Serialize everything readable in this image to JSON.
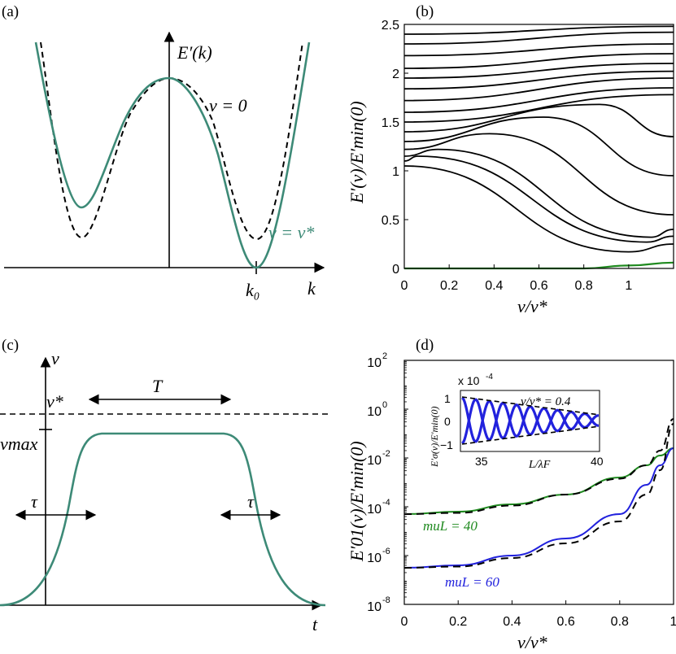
{
  "panels": {
    "a": {
      "panel_label": "(a)",
      "ylabel": "E′(k)",
      "xlabel": "k",
      "k0_label": "k₀",
      "curve_label_v0": "v = 0",
      "curve_label_vstar": "v = v*",
      "colors": {
        "vstar": "#3d8a77",
        "v0": "#000000"
      }
    },
    "b": {
      "panel_label": "(b)",
      "ylabel": "E′(v)/E′min(0)",
      "xlabel": "v/v*",
      "xticks": [
        "0",
        "0.2",
        "0.4",
        "0.6",
        "0.8",
        "1"
      ],
      "yticks": [
        "0",
        "0.5",
        "1",
        "1.5",
        "2",
        "2.5"
      ],
      "colors": {
        "bands": "#000000",
        "ground": "#1f8a1f"
      }
    },
    "c": {
      "panel_label": "(c)",
      "ylabel": "v",
      "xlabel": "t",
      "vstar_label": "v*",
      "vmax_label": "vmax",
      "T_label": "T",
      "tau_label_left": "τ",
      "tau_label_right": "τ",
      "colors": {
        "pulse": "#3d8a77"
      }
    },
    "d": {
      "panel_label": "(d)",
      "ylabel": "E′01(v)/E′min(0)",
      "xlabel": "v/v*",
      "xticks": [
        "0",
        "0.2",
        "0.4",
        "0.6",
        "0.8",
        "1"
      ],
      "yticks": [
        "10",
        "10",
        "10",
        "10",
        "10",
        "10"
      ],
      "ytick_exponents": [
        "-8",
        "-6",
        "-4",
        "-2",
        "0",
        "2"
      ],
      "series_label_40": "muL = 40",
      "series_label_60": "muL = 60",
      "colors": {
        "mu40": "#1f8a1f",
        "mu60": "#2222dd",
        "approx": "#000000"
      },
      "inset": {
        "scale_label": "x 10",
        "scale_exponent": "-4",
        "annotation": "v/v* = 0.4",
        "ylabel": "E′σ(v)/E′min(0)",
        "xlabel": "L/λF",
        "xticks": [
          "35",
          "40"
        ],
        "yticks": [
          "1",
          "0",
          "−1"
        ]
      }
    }
  },
  "chart_data": [
    {
      "type": "line",
      "panel": "a",
      "xlabel": "k",
      "ylabel": "E′(k)",
      "series": [
        {
          "name": "v = 0",
          "style": "dashed",
          "x": [
            -2.5,
            -2.2,
            -1.9,
            -1.6,
            -1.3,
            -1.0,
            -0.7,
            -0.4,
            0,
            0.4,
            0.7,
            1.0,
            1.3,
            1.6,
            1.9,
            2.2,
            2.5
          ],
          "y": [
            3.1,
            1.6,
            0.6,
            0.2,
            0.55,
            1.25,
            1.85,
            2.25,
            2.4,
            2.25,
            1.85,
            1.25,
            0.55,
            0.2,
            0.6,
            1.6,
            3.1
          ]
        },
        {
          "name": "v = v*",
          "style": "solid",
          "x": [
            -2.6,
            -2.3,
            -2.0,
            -1.7,
            -1.4,
            -1.1,
            -0.8,
            -0.4,
            0,
            0.4,
            0.8,
            1.1,
            1.4,
            1.7,
            2.0,
            2.3,
            2.6
          ],
          "y": [
            3.1,
            1.7,
            0.9,
            0.55,
            0.85,
            1.45,
            1.95,
            2.3,
            2.4,
            2.2,
            1.6,
            0.9,
            0.2,
            0.15,
            0.7,
            1.8,
            3.2
          ]
        }
      ]
    },
    {
      "type": "line",
      "panel": "b",
      "xlabel": "v/v*",
      "ylabel": "E′(v)/E′min(0)",
      "xlim": [
        0,
        1.2
      ],
      "ylim": [
        0,
        2.5
      ],
      "bands": [
        [
          [
            0,
            1.05
          ],
          [
            1.0,
            0.17
          ],
          [
            1.2,
            0.25
          ]
        ],
        [
          [
            0,
            1.1
          ],
          [
            0.06,
            1.15
          ],
          [
            1.08,
            0.27
          ],
          [
            1.2,
            0.33
          ]
        ],
        [
          [
            0,
            1.15
          ],
          [
            0.15,
            1.22
          ],
          [
            1.1,
            0.32
          ],
          [
            1.2,
            0.4
          ]
        ],
        [
          [
            0,
            1.22
          ],
          [
            0.38,
            1.38
          ],
          [
            1.2,
            0.55
          ]
        ],
        [
          [
            0,
            1.3
          ],
          [
            0.62,
            1.55
          ],
          [
            1.2,
            0.95
          ]
        ],
        [
          [
            0,
            1.4
          ],
          [
            0.87,
            1.68
          ],
          [
            1.2,
            1.35
          ]
        ],
        [
          [
            0,
            1.5
          ],
          [
            1.2,
            1.78
          ]
        ],
        [
          [
            0,
            1.6
          ],
          [
            1.2,
            1.85
          ]
        ],
        [
          [
            0,
            1.72
          ],
          [
            1.2,
            1.95
          ]
        ],
        [
          [
            0,
            1.84
          ],
          [
            1.2,
            2.02
          ]
        ],
        [
          [
            0,
            1.95
          ],
          [
            1.2,
            2.1
          ]
        ],
        [
          [
            0,
            2.05
          ],
          [
            1.2,
            2.2
          ]
        ],
        [
          [
            0,
            2.18
          ],
          [
            1.2,
            2.3
          ]
        ],
        [
          [
            0,
            2.3
          ],
          [
            1.2,
            2.42
          ]
        ],
        [
          [
            0,
            2.4
          ],
          [
            1.2,
            2.48
          ]
        ]
      ],
      "ground": [
        [
          0,
          0
        ],
        [
          0.8,
          0
        ],
        [
          1.0,
          0.03
        ],
        [
          1.2,
          0.06
        ]
      ]
    },
    {
      "type": "line",
      "panel": "c",
      "xlabel": "t",
      "ylabel": "v",
      "series": [
        {
          "name": "v(t)",
          "x": [
            0,
            0.05,
            0.1,
            0.15,
            0.2,
            0.25,
            0.3,
            0.7,
            0.75,
            0.8,
            0.85,
            0.9,
            0.95,
            1.0
          ],
          "y": [
            0,
            0.05,
            0.35,
            0.8,
            0.98,
            1.0,
            1.0,
            1.0,
            0.98,
            0.8,
            0.35,
            0.05,
            0.01,
            0
          ]
        }
      ]
    },
    {
      "type": "line",
      "panel": "d",
      "xlabel": "v/v*",
      "ylabel": "E′01(v)/E′min(0)",
      "xlim": [
        0,
        1
      ],
      "ylim_log10": [
        -8,
        2
      ],
      "series": [
        {
          "name": "muL = 40",
          "x": [
            0,
            0.2,
            0.4,
            0.6,
            0.8,
            0.9,
            0.95,
            1.0
          ],
          "log10_y": [
            -4.3,
            -4.2,
            -3.9,
            -3.5,
            -2.8,
            -2.3,
            -1.9,
            -1.6
          ]
        },
        {
          "name": "muL = 60",
          "x": [
            0,
            0.2,
            0.4,
            0.6,
            0.8,
            0.9,
            0.95,
            1.0
          ],
          "log10_y": [
            -6.5,
            -6.4,
            -6.0,
            -5.3,
            -4.3,
            -3.1,
            -2.3,
            -1.6
          ]
        }
      ],
      "approx": [
        {
          "x": [
            0,
            0.2,
            0.4,
            0.6,
            0.8,
            0.9,
            0.95,
            1.0
          ],
          "log10_y": [
            -4.3,
            -4.25,
            -3.95,
            -3.5,
            -2.85,
            -2.3,
            -1.7,
            -0.4
          ]
        },
        {
          "x": [
            0,
            0.2,
            0.4,
            0.6,
            0.8,
            0.9,
            0.95,
            1.0
          ],
          "log10_y": [
            -6.5,
            -6.45,
            -6.1,
            -5.5,
            -4.6,
            -3.5,
            -2.5,
            -0.6
          ]
        }
      ]
    }
  ]
}
